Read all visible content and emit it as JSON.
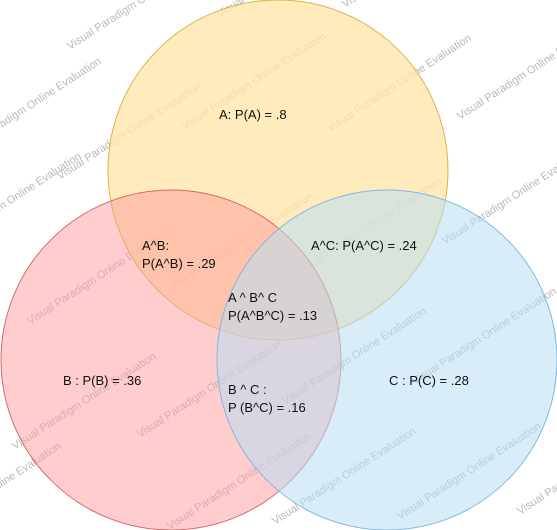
{
  "diagram": {
    "type": "venn",
    "circles": [
      {
        "id": "A",
        "fill": "#ffe6a8",
        "stroke": "#d8b54a"
      },
      {
        "id": "B",
        "fill": "#ff9b9b",
        "stroke": "#d46a6a"
      },
      {
        "id": "C",
        "fill": "#b9def4",
        "stroke": "#7fb8dd"
      }
    ],
    "labels": {
      "a": "A: P(A) = .8",
      "ab_1": "A^B:",
      "ab_2": "P(A^B) = .29",
      "ac": "A^C: P(A^C) = .24",
      "abc_1": "A ^ B^ C",
      "abc_2": "P(A^B^C) = .13",
      "b": "B : P(B) = .36",
      "bc_1": "B ^ C :",
      "bc_2": "P (B^C) = .16",
      "c": "C : P(C) = .28"
    },
    "watermark": "Visual Paradigm Online Evaluation"
  }
}
